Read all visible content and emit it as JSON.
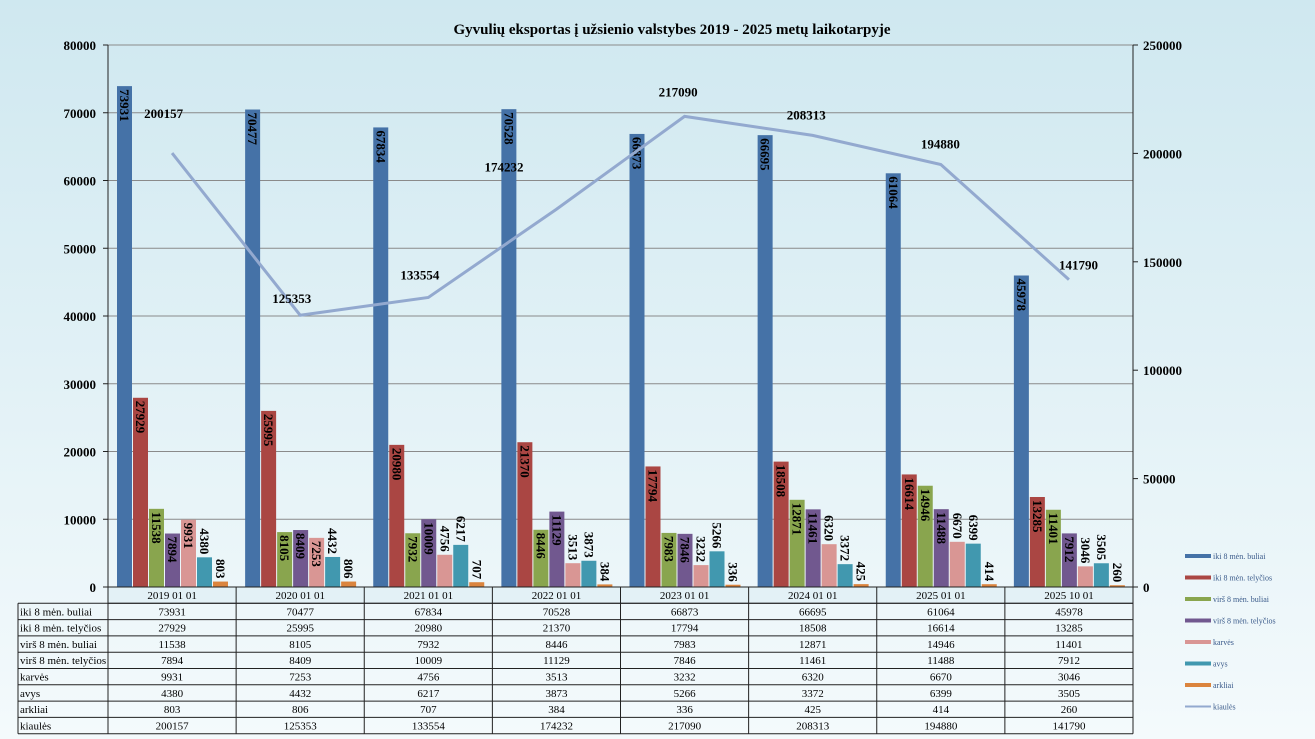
{
  "chart_data": {
    "type": "bar",
    "title": "Gyvulių  eksportas į užsienio valstybes 2019 - 2025 metų laikotarpyje",
    "categories": [
      "2019 01 01",
      "2020 01 01",
      "2021 01 01",
      "2022 01 01",
      "2023 01 01",
      "2024 01 01",
      "2025 01 01",
      "2025 10 01"
    ],
    "ylim": [
      0,
      80000
    ],
    "y_ticks": [
      "0",
      "10000",
      "20000",
      "30000",
      "40000",
      "50000",
      "60000",
      "70000",
      "80000"
    ],
    "y2lim": [
      0,
      250000
    ],
    "y2_ticks": [
      "0",
      "50000",
      "100000",
      "150000",
      "200000",
      "250000"
    ],
    "grid": true,
    "legend_position": "right",
    "series": [
      {
        "name": "iki 8 mėn. buliai",
        "type": "bar",
        "axis": "left",
        "color": "#4572a7",
        "values": [
          73931,
          70477,
          67834,
          70528,
          66873,
          66695,
          61064,
          45978
        ]
      },
      {
        "name": "iki 8 mėn. telyčios",
        "type": "bar",
        "axis": "left",
        "color": "#aa4643",
        "values": [
          27929,
          25995,
          20980,
          21370,
          17794,
          18508,
          16614,
          13285
        ]
      },
      {
        "name": "virš 8 mėn. buliai",
        "type": "bar",
        "axis": "left",
        "color": "#89a54e",
        "values": [
          11538,
          8105,
          7932,
          8446,
          7983,
          12871,
          14946,
          11401
        ]
      },
      {
        "name": "virš 8 mėn. telyčios",
        "type": "bar",
        "axis": "left",
        "color": "#71588f",
        "values": [
          7894,
          8409,
          10009,
          11129,
          7846,
          11461,
          11488,
          7912
        ]
      },
      {
        "name": "karvės",
        "type": "bar",
        "axis": "left",
        "color": "#d99694",
        "values": [
          9931,
          7253,
          4756,
          3513,
          3232,
          6320,
          6670,
          3046
        ]
      },
      {
        "name": "avys",
        "type": "bar",
        "axis": "left",
        "color": "#4198af",
        "values": [
          4380,
          4432,
          6217,
          3873,
          5266,
          3372,
          6399,
          3505
        ]
      },
      {
        "name": "arkliai",
        "type": "bar",
        "axis": "left",
        "color": "#db843d",
        "values": [
          803,
          806,
          707,
          384,
          336,
          425,
          414,
          260
        ]
      },
      {
        "name": "kiaulės",
        "type": "line",
        "axis": "right",
        "color": "#93a9cf",
        "values": [
          200157,
          125353,
          133554,
          174232,
          217090,
          208313,
          194880,
          141790
        ]
      }
    ]
  }
}
